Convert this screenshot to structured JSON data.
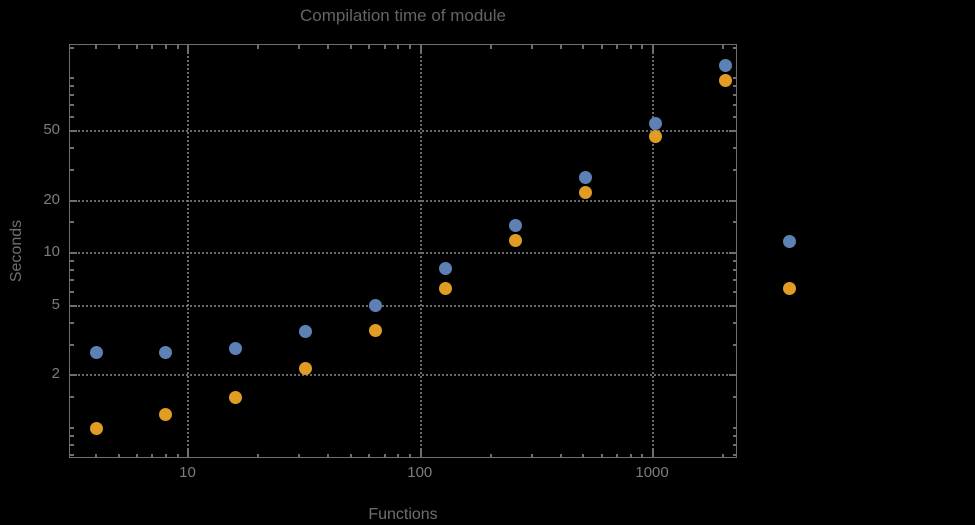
{
  "colors": {
    "background": "#000000",
    "frame": "#6e6e6e",
    "grid": "#7d7d7d",
    "title_text": "#646464",
    "axis_label_text": "#6f6f6f",
    "tick_label_text": "#7c7c7c",
    "series_blue": "#5e81b5",
    "series_orange": "#e19c24"
  },
  "legend": {
    "labels_visible": false,
    "entries": [
      {
        "series": "blue",
        "color": "#5e81b5"
      },
      {
        "series": "orange",
        "color": "#e19c24"
      }
    ]
  },
  "chart_data": {
    "type": "scatter",
    "title": "Compilation time of module",
    "xlabel": "Functions",
    "ylabel": "Seconds",
    "x_scale": "log",
    "y_scale": "log",
    "xlim": [
      3.09,
      2321
    ],
    "ylim": [
      0.665,
      155.3
    ],
    "grid": "dotted, at labeled ticks only",
    "legend_position": "outside-right",
    "x_ticks_labeled": [
      10,
      100,
      1000
    ],
    "x_ticks_minor": [
      4,
      5,
      6,
      7,
      8,
      9,
      20,
      30,
      40,
      50,
      60,
      70,
      80,
      90,
      200,
      300,
      400,
      500,
      600,
      700,
      800,
      900,
      2000
    ],
    "y_ticks_labeled": [
      2,
      5,
      10,
      20,
      50
    ],
    "y_ticks_minor": [
      0.7,
      0.8,
      0.9,
      1,
      1.5,
      3,
      4,
      6,
      7,
      8,
      9,
      15,
      30,
      40,
      60,
      70,
      80,
      90,
      100,
      150
    ],
    "x": [
      4,
      8,
      16,
      32,
      64,
      128,
      256,
      512,
      1024,
      2048
    ],
    "series": [
      {
        "name": "blue",
        "color": "#5e81b5",
        "values": [
          2.7,
          2.7,
          2.85,
          3.55,
          5.05,
          8.2,
          14.5,
          27,
          55,
          118
        ]
      },
      {
        "name": "orange",
        "color": "#e19c24",
        "values": [
          1.0,
          1.2,
          1.5,
          2.2,
          3.6,
          6.3,
          11.9,
          22.3,
          46.5,
          97
        ]
      }
    ]
  }
}
